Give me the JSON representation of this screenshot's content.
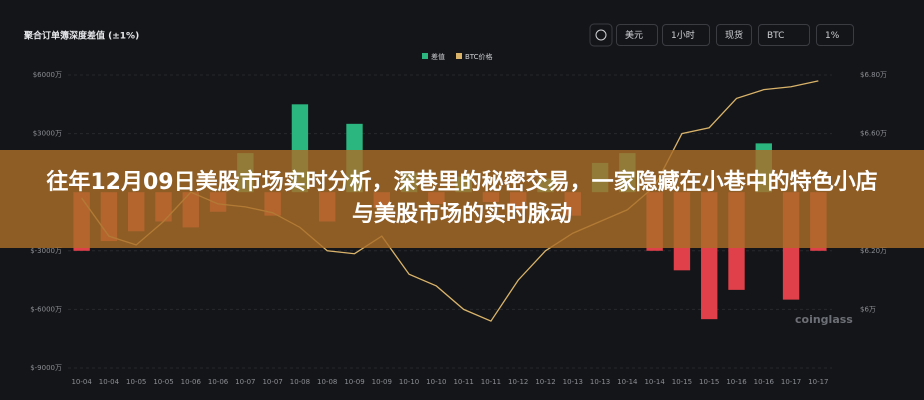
{
  "header": {
    "title": "聚合订单簿深度差值 (±1%)",
    "controls": [
      "美元",
      "1小时",
      "现货",
      "BTC",
      "1%"
    ]
  },
  "watermark": "coinglass",
  "banner": {
    "text": "往年12月09日美股市场实时分析，深巷里的秘密交易，一家隐藏在小巷中的特色小店与美股市场的实时脉动"
  },
  "chart_data": {
    "type": "bar_line",
    "categories": [
      "10-04",
      "10-04",
      "10-05",
      "10-05",
      "10-06",
      "10-06",
      "10-07",
      "10-07",
      "10-08",
      "10-08",
      "10-09",
      "10-09",
      "10-10",
      "10-10",
      "10-11",
      "10-11",
      "10-12",
      "10-12",
      "10-13",
      "10-13",
      "10-14",
      "10-14",
      "10-15",
      "10-15",
      "10-16",
      "10-16",
      "10-17",
      "10-17"
    ],
    "series": [
      {
        "name": "差值",
        "color": "#2bb57f",
        "negative_color": "#e0404a",
        "values": [
          -3000,
          -2500,
          -2000,
          -1500,
          -1800,
          -1000,
          2000,
          -1200,
          4500,
          -1500,
          3500,
          -800,
          1000,
          -600,
          800,
          -500,
          -900,
          700,
          -1200,
          1500,
          2000,
          -3000,
          -4000,
          -6500,
          -5000,
          2500,
          -5500,
          -3000
        ]
      },
      {
        "name": "BTC价格",
        "color": "#d9b36a",
        "axis": "y2",
        "values": [
          6.38,
          6.25,
          6.22,
          6.3,
          6.4,
          6.36,
          6.35,
          6.33,
          6.28,
          6.2,
          6.19,
          6.25,
          6.12,
          6.08,
          6.0,
          5.96,
          6.1,
          6.2,
          6.26,
          6.3,
          6.34,
          6.42,
          6.6,
          6.62,
          6.72,
          6.75,
          6.76,
          6.78
        ]
      }
    ],
    "ylim": [
      -9000,
      6000
    ],
    "yticks": [
      {
        "value": 6000,
        "label": "$6000万"
      },
      {
        "value": 3000,
        "label": "$3000万"
      },
      {
        "value": -3000,
        "label": "$-3000万"
      },
      {
        "value": -6000,
        "label": "$-6000万"
      },
      {
        "value": -9000,
        "label": "$-9000万"
      }
    ],
    "y2lim": [
      5.8,
      6.8
    ],
    "y2ticks": [
      {
        "value": 6.8,
        "label": "$6.80万"
      },
      {
        "value": 6.6,
        "label": "$6.60万"
      },
      {
        "value": 6.2,
        "label": "$6.20万"
      },
      {
        "value": 6,
        "label": "$6万"
      }
    ],
    "grid": true
  }
}
